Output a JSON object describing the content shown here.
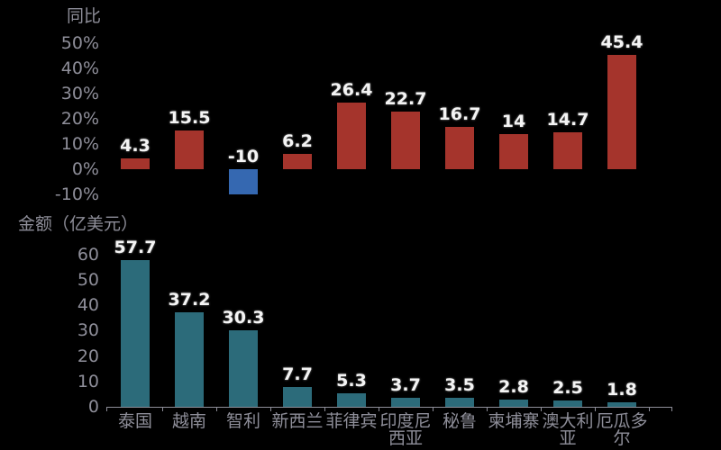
{
  "app": {
    "background": "#000000"
  },
  "palette": {
    "axis_text": "#8E8E99",
    "axis_line": "#8E8E99",
    "data_label_text": "#F4F4F4"
  },
  "chart_data": [
    {
      "id": "yoy",
      "type": "bar",
      "title": "同比",
      "categories": [
        "泰国",
        "越南",
        "智利",
        "新西兰",
        "菲律宾",
        "印度尼西亚",
        "秘鲁",
        "柬埔寨",
        "澳大利亚",
        "厄瓜多尔"
      ],
      "values": [
        4.3,
        15.5,
        -10,
        6.2,
        26.4,
        22.7,
        16.7,
        14,
        14.7,
        45.4
      ],
      "value_labels": [
        "4.3",
        "15.5",
        "-10",
        "6.2",
        "26.4",
        "22.7",
        "16.7",
        "14",
        "14.7",
        "45.4"
      ],
      "unit": "%",
      "yticks": [
        "50%",
        "40%",
        "30%",
        "20%",
        "10%",
        "0%",
        "-10%"
      ],
      "ylim": [
        -10,
        50
      ],
      "grid": false,
      "legend_position": "none",
      "x_axis_labels_shown": false,
      "colors": {
        "positive": "#A5342C",
        "negative": "#3568B1"
      }
    },
    {
      "id": "amount",
      "type": "bar",
      "title": "金额（亿美元）",
      "categories": [
        "泰国",
        "越南",
        "智利",
        "新西兰",
        "菲律宾",
        "印度尼西亚",
        "秘鲁",
        "柬埔寨",
        "澳大利亚",
        "厄瓜多尔"
      ],
      "values": [
        57.7,
        37.2,
        30.3,
        7.7,
        5.3,
        3.7,
        3.5,
        2.8,
        2.5,
        1.8
      ],
      "value_labels": [
        "57.7",
        "37.2",
        "30.3",
        "7.7",
        "5.3",
        "3.7",
        "3.5",
        "2.8",
        "2.5",
        "1.8"
      ],
      "unit": "亿美元",
      "yticks": [
        "60",
        "50",
        "40",
        "30",
        "20",
        "10",
        "0"
      ],
      "ylim": [
        0,
        60
      ],
      "grid": false,
      "legend_position": "none",
      "x_axis_labels_shown": true,
      "colors": {
        "positive": "#2C6B7A",
        "negative": "#2C6B7A"
      }
    }
  ]
}
